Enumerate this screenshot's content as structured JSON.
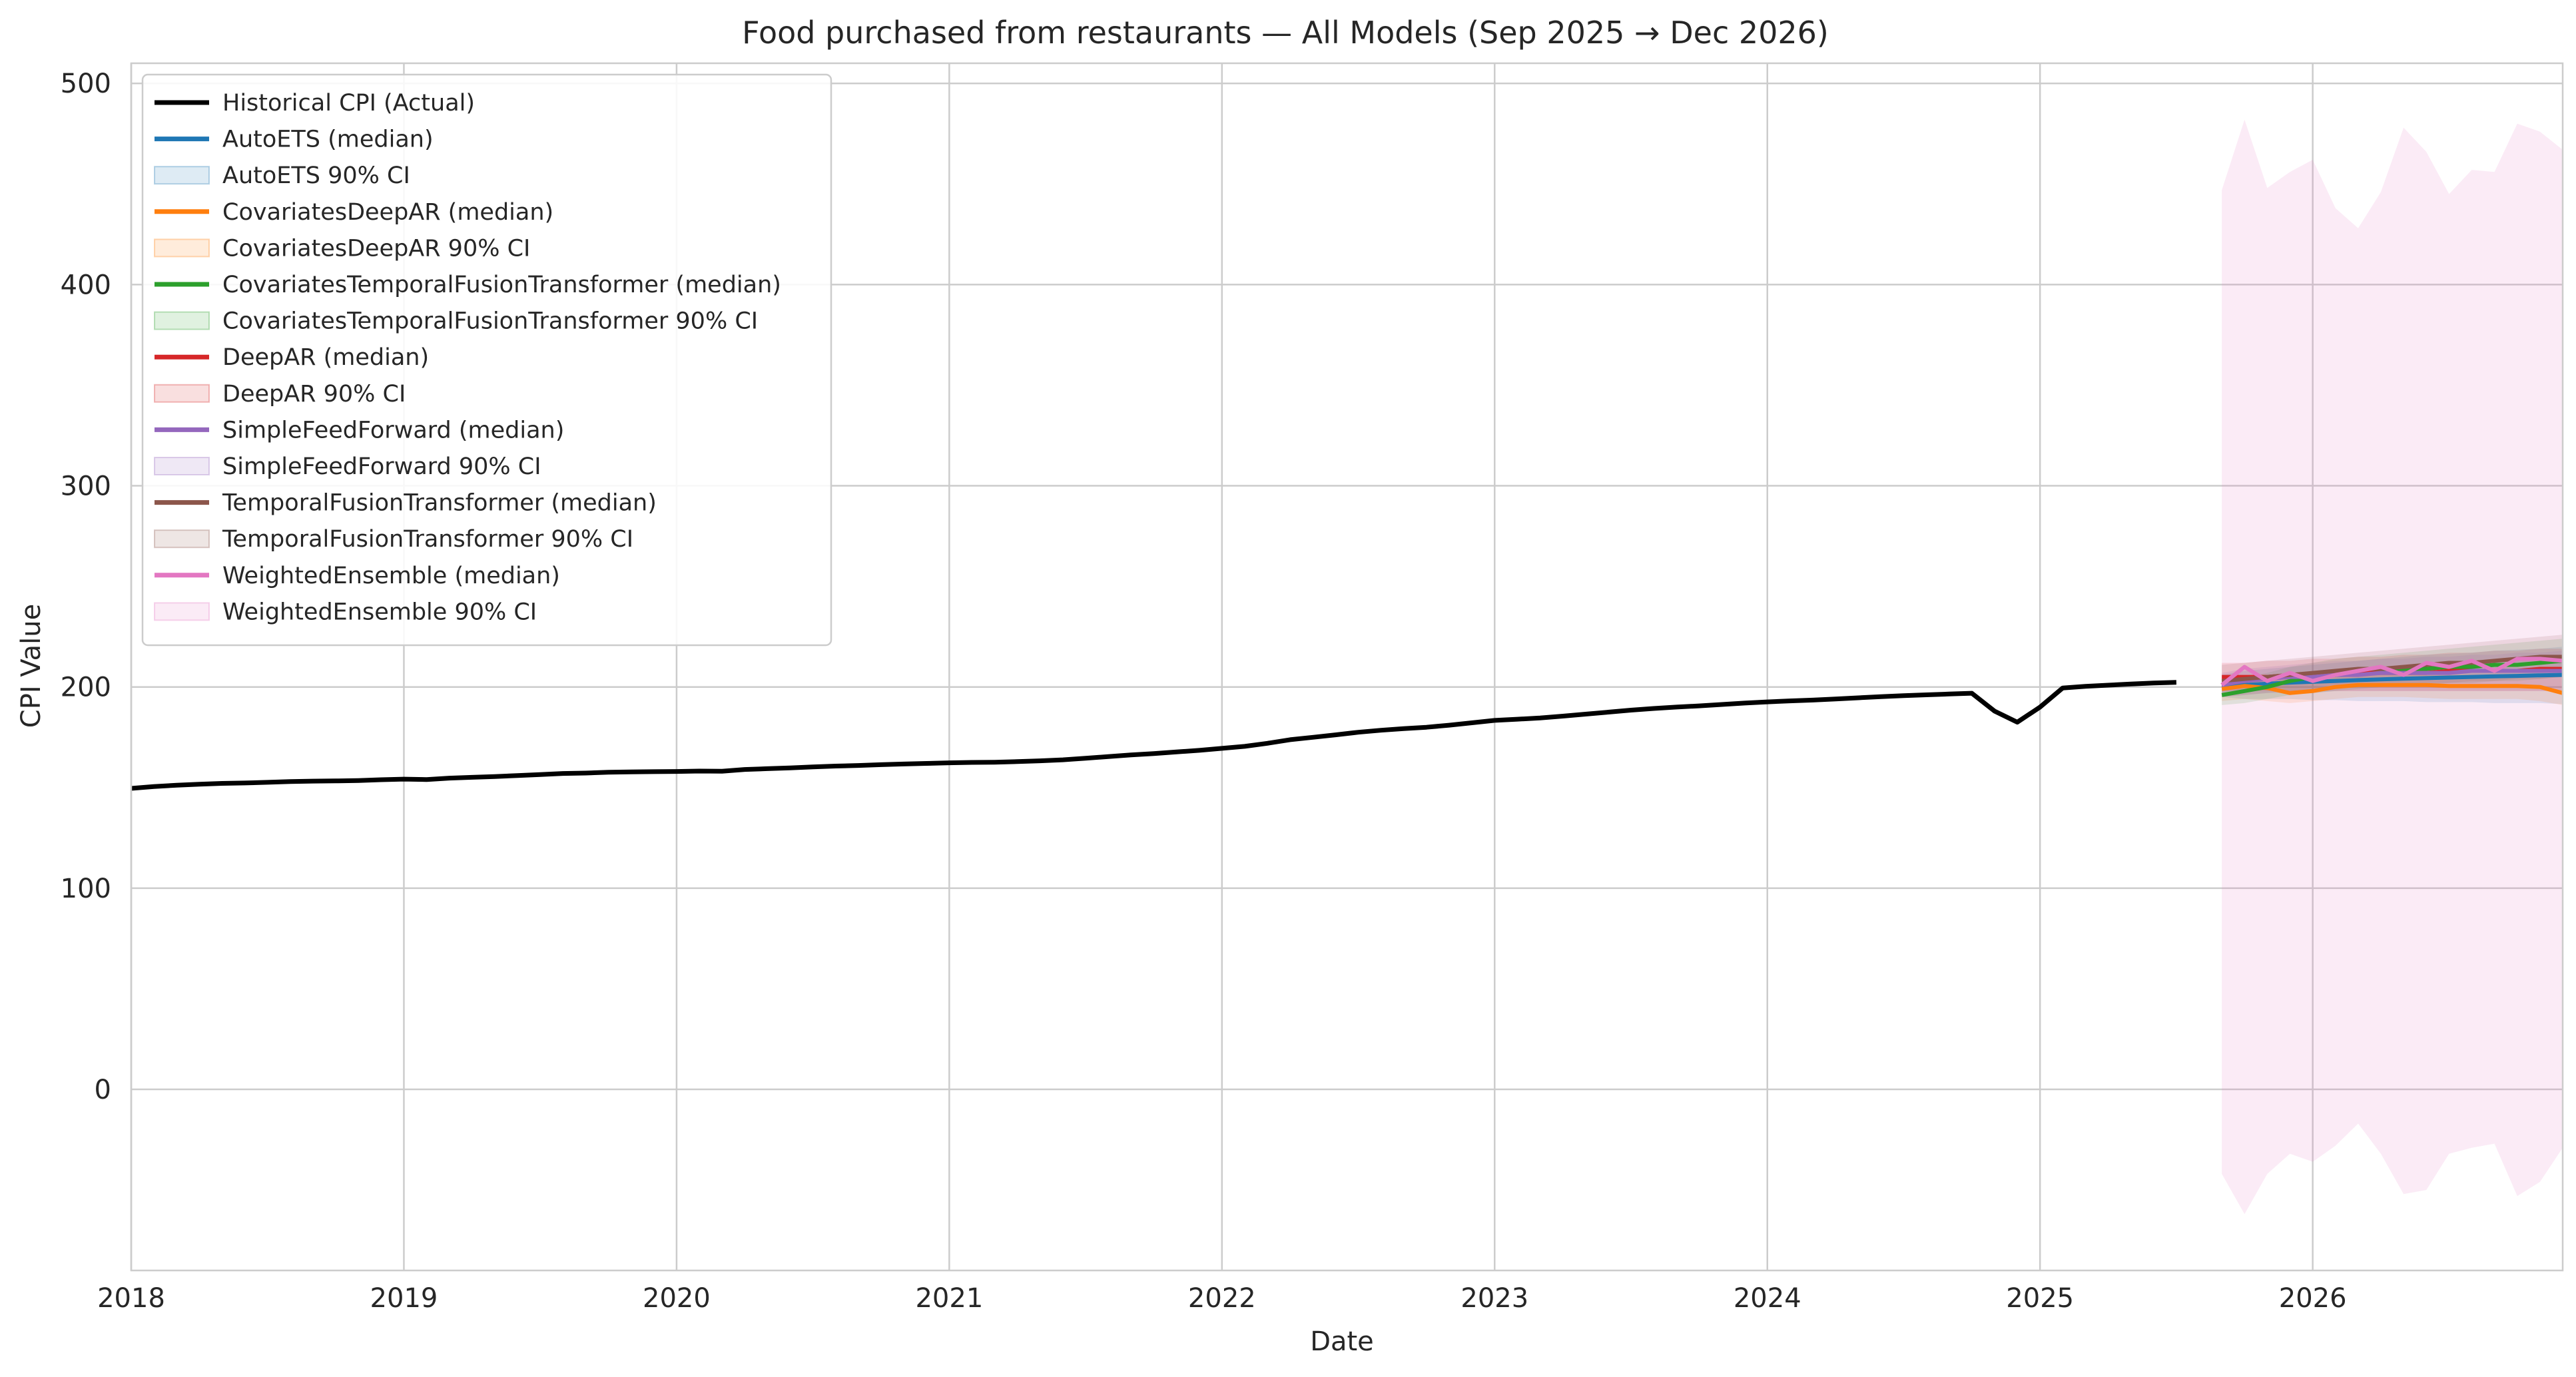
{
  "chart_data": {
    "type": "line",
    "title": "Food purchased from restaurants — All Models (Sep 2025 → Dec 2026)",
    "xlabel": "Date",
    "ylabel": "CPI Value",
    "xlim": [
      "2018-01",
      "2026-12"
    ],
    "ylim": [
      -90,
      510
    ],
    "grid": true,
    "legend_position": "top-left",
    "x_ticks": [
      "2018",
      "2019",
      "2020",
      "2021",
      "2022",
      "2023",
      "2024",
      "2025",
      "2026"
    ],
    "y_ticks": [
      0,
      100,
      200,
      300,
      400,
      500
    ],
    "historical": {
      "name": "Historical CPI (Actual)",
      "color": "#000000",
      "start": "2018-01",
      "values": [
        149.6,
        150.5,
        151.2,
        151.7,
        152.1,
        152.3,
        152.6,
        153.0,
        153.2,
        153.3,
        153.5,
        153.9,
        154.2,
        154.0,
        154.7,
        155.1,
        155.5,
        156.0,
        156.5,
        157.0,
        157.2,
        157.6,
        157.8,
        157.9,
        158.0,
        158.2,
        158.1,
        159.0,
        159.4,
        159.8,
        160.3,
        160.7,
        161.0,
        161.4,
        161.7,
        162.0,
        162.3,
        162.5,
        162.6,
        162.9,
        163.3,
        163.8,
        164.6,
        165.4,
        166.2,
        166.9,
        167.7,
        168.5,
        169.5,
        170.5,
        172.0,
        173.8,
        175.0,
        176.2,
        177.5,
        178.5,
        179.3,
        180.0,
        181.0,
        182.2,
        183.4,
        184.0,
        184.6,
        185.5,
        186.5,
        187.5,
        188.5,
        189.3,
        190.0,
        190.6,
        191.3,
        192.0,
        192.6,
        193.1,
        193.5,
        194.0,
        194.6,
        195.2,
        195.7,
        196.1,
        196.5,
        196.9,
        188.0,
        182.5,
        190.0,
        199.5,
        200.3,
        200.9,
        201.5,
        202.0,
        202.3
      ],
      "clip_x": [
        2018.0,
        2025.58
      ]
    },
    "forecast_x": [
      "2025-09",
      "2025-10",
      "2025-11",
      "2025-12",
      "2026-01",
      "2026-02",
      "2026-03",
      "2026-04",
      "2026-05",
      "2026-06",
      "2026-07",
      "2026-08",
      "2026-09",
      "2026-10",
      "2026-11",
      "2026-12"
    ],
    "series": [
      {
        "name": "AutoETS (median)",
        "ci_name": "AutoETS 90% CI",
        "color": "#1f77b4",
        "median": [
          200.5,
          201.0,
          201.6,
          202.2,
          202.6,
          203.0,
          203.4,
          203.8,
          204.1,
          204.4,
          204.7,
          205.0,
          205.3,
          205.5,
          205.8,
          206.0
        ],
        "lower": [
          195,
          194,
          194,
          194,
          193.5,
          193.5,
          193,
          193,
          193,
          192.5,
          192.5,
          192.5,
          192,
          192,
          192,
          191.5
        ],
        "upper": [
          206,
          208,
          209,
          210,
          211,
          212,
          213,
          214,
          215,
          216,
          216.5,
          217,
          218,
          218.5,
          219,
          220
        ]
      },
      {
        "name": "CovariatesDeepAR (median)",
        "ci_name": "CovariatesDeepAR 90% CI",
        "color": "#ff7f0e",
        "median": [
          199,
          200.5,
          199.5,
          197,
          198,
          200,
          201,
          201,
          201,
          201,
          200.5,
          200.5,
          200.5,
          200.5,
          200,
          197
        ],
        "lower": [
          193,
          194,
          193,
          192,
          193,
          194,
          195,
          195,
          195,
          194.5,
          194,
          194,
          194,
          194,
          193,
          191
        ],
        "upper": [
          205,
          206,
          206,
          204,
          204,
          205,
          206,
          206,
          206,
          206,
          206,
          206,
          206,
          206,
          206,
          205
        ]
      },
      {
        "name": "CovariatesTemporalFusionTransformer (median)",
        "ci_name": "CovariatesTemporalFusionTransformer 90% CI",
        "color": "#2ca02c",
        "median": [
          196,
          198,
          200,
          203,
          205,
          206,
          207,
          208,
          209,
          209,
          210,
          210,
          211,
          211,
          212,
          213
        ],
        "lower": [
          191,
          192,
          194,
          196,
          197,
          198,
          199,
          200,
          201,
          201,
          202,
          202,
          203,
          203,
          204,
          205
        ],
        "upper": [
          203,
          205,
          207,
          210,
          212,
          214,
          215,
          216,
          217,
          218,
          219,
          220,
          221,
          222,
          223,
          224
        ]
      },
      {
        "name": "DeepAR (median)",
        "ci_name": "DeepAR 90% CI",
        "color": "#d62728",
        "median": [
          205,
          205,
          205,
          206,
          206,
          206,
          207,
          207,
          207,
          207,
          208,
          208,
          208,
          208,
          209,
          209
        ],
        "lower": [
          198,
          198,
          198,
          198,
          198,
          198,
          198,
          198,
          198,
          198,
          198,
          198,
          198,
          198,
          198,
          198
        ],
        "upper": [
          212,
          212,
          213,
          213,
          214,
          214,
          215,
          215,
          216,
          216,
          217,
          217,
          218,
          218,
          219,
          219
        ]
      },
      {
        "name": "SimpleFeedForward (median)",
        "ci_name": "SimpleFeedForward 90% CI",
        "color": "#9467bd",
        "median": [
          201,
          203,
          204,
          205,
          205,
          206,
          206,
          207,
          207,
          207,
          207,
          208,
          208,
          208,
          208,
          208
        ],
        "lower": [
          195,
          196,
          197,
          197,
          197,
          198,
          198,
          198,
          198,
          198,
          198,
          198,
          198,
          198,
          198,
          198
        ],
        "upper": [
          207,
          209,
          210,
          211,
          212,
          213,
          213,
          214,
          214,
          215,
          215,
          216,
          216,
          217,
          217,
          218
        ]
      },
      {
        "name": "TemporalFusionTransformer (median)",
        "ci_name": "TemporalFusionTransformer 90% CI",
        "color": "#8c564b",
        "median": [
          203,
          204,
          205,
          206,
          207,
          208,
          209,
          209,
          210,
          211,
          212,
          212,
          213,
          214,
          215,
          215
        ],
        "lower": [
          195,
          196,
          197,
          198,
          199,
          200,
          200,
          201,
          201,
          202,
          202,
          203,
          203,
          204,
          204,
          205
        ],
        "upper": [
          211,
          212,
          213,
          214,
          215,
          216,
          217,
          218,
          219,
          220,
          221,
          222,
          223,
          224,
          225,
          226
        ]
      },
      {
        "name": "WeightedEnsemble (median)",
        "ci_name": "WeightedEnsemble 90% CI",
        "color": "#e377c2",
        "median": [
          201,
          210,
          203,
          207,
          203,
          206,
          208,
          210,
          206,
          212,
          210,
          213,
          208,
          214,
          214,
          213
        ],
        "lower": [
          -42,
          -62,
          -42,
          -32,
          -36,
          -28,
          -17,
          -32,
          -52,
          -50,
          -32,
          -29,
          -27,
          -53,
          -46,
          -29
        ],
        "upper": [
          447,
          482,
          448,
          456,
          462,
          438,
          428,
          446,
          478,
          466,
          445,
          457,
          456,
          480,
          476,
          467
        ]
      }
    ]
  }
}
